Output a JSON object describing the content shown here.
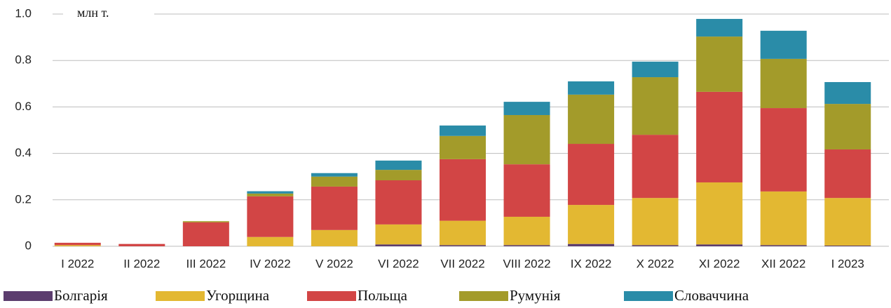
{
  "chart_data": {
    "type": "bar",
    "stacked": true,
    "y_label": "млн т.",
    "categories": [
      "I 2022",
      "II 2022",
      "III 2022",
      "IV 2022",
      "V 2022",
      "VI 2022",
      "VII 2022",
      "VIII 2022",
      "IX 2022",
      "X 2022",
      "XI 2022",
      "XII 2022",
      "I 2023"
    ],
    "series": [
      {
        "name": "Болгарія",
        "color": "#5c3d6e",
        "values": [
          0,
          0,
          0,
          0,
          0,
          0.008,
          0.005,
          0.005,
          0.01,
          0.005,
          0.008,
          0.005,
          0.003
        ]
      },
      {
        "name": "Угорщина",
        "color": "#e3b832",
        "values": [
          0.005,
          0,
          0,
          0.04,
          0.07,
          0.086,
          0.105,
          0.122,
          0.168,
          0.203,
          0.267,
          0.231,
          0.205
        ]
      },
      {
        "name": "Польща",
        "color": "#d24545",
        "values": [
          0.01,
          0.01,
          0.103,
          0.175,
          0.187,
          0.19,
          0.265,
          0.226,
          0.263,
          0.272,
          0.39,
          0.359,
          0.209
        ]
      },
      {
        "name": "Румунія",
        "color": "#a39b2a",
        "values": [
          0,
          0,
          0.005,
          0.012,
          0.043,
          0.045,
          0.1,
          0.212,
          0.212,
          0.248,
          0.238,
          0.212,
          0.196
        ]
      },
      {
        "name": "Словаччина",
        "color": "#2a8ca8",
        "values": [
          0,
          0,
          0,
          0.01,
          0.015,
          0.04,
          0.045,
          0.057,
          0.057,
          0.067,
          0.076,
          0.121,
          0.094
        ]
      }
    ],
    "ylim": [
      0,
      1
    ],
    "yticks": [
      0,
      0.2,
      0.4,
      0.6,
      0.8,
      {
        "value": 1,
        "label": "1.0"
      }
    ],
    "grid": true,
    "legend": "bottom"
  }
}
